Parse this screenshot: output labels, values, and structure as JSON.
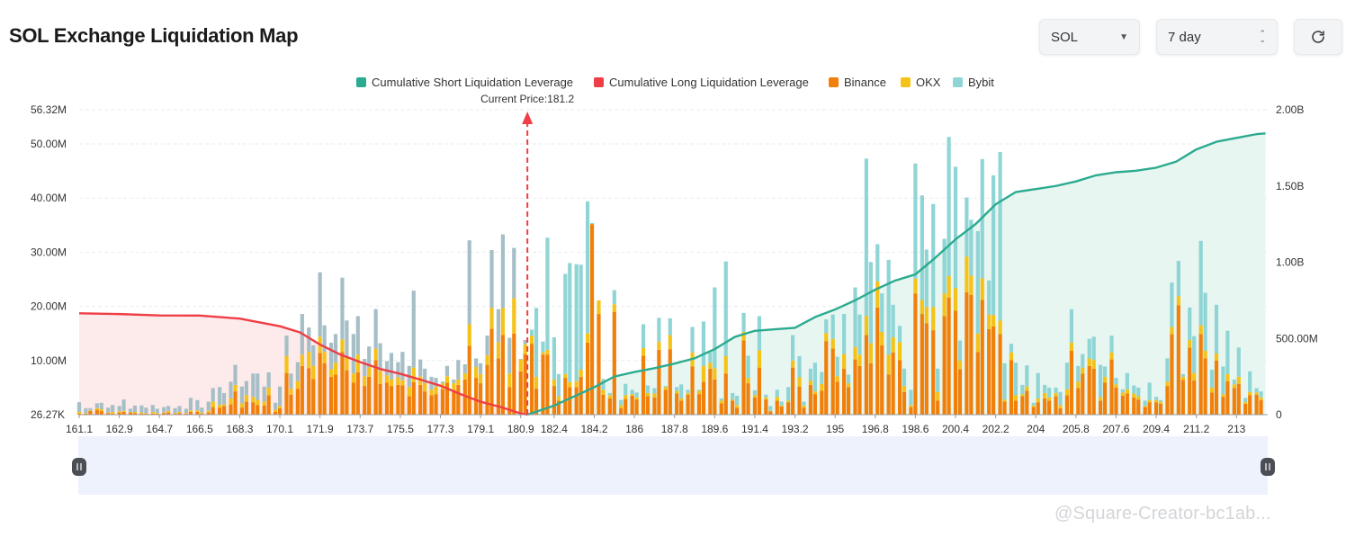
{
  "page": {
    "title": "SOL Exchange Liquidation Map",
    "symbol_select": "SOL",
    "range_select": "7 day",
    "refresh_icon": "refresh-icon",
    "watermark": "@Square-Creator-bc1ab..."
  },
  "colors": {
    "short": "#2bab8f",
    "long": "#ef3e45",
    "binance": "#f0800a",
    "okx": "#f5c218",
    "bybit": "#8fd5d5",
    "bybit_left": "#a6bfc6"
  },
  "chart_data": {
    "type": "bar",
    "title": "",
    "legend": {
      "position": "top-center",
      "items": [
        "Cumulative Short Liquidation Leverage",
        "Cumulative Long Liquidation Leverage",
        "Binance",
        "OKX",
        "Bybit"
      ]
    },
    "current_price_label": "Current Price:181.2",
    "current_price": 181.2,
    "x_range": [
      161.1,
      214.4
    ],
    "x_ticks": [
      "161.1",
      "162.9",
      "164.7",
      "166.5",
      "168.3",
      "170.1",
      "171.9",
      "173.7",
      "175.5",
      "177.3",
      "179.1",
      "180.9",
      "182.4",
      "184.2",
      "186",
      "187.8",
      "189.6",
      "191.4",
      "193.2",
      "195",
      "196.8",
      "198.6",
      "200.4",
      "202.2",
      "204",
      "205.8",
      "207.6",
      "209.4",
      "211.2",
      "213"
    ],
    "y_left": {
      "ticks": [
        {
          "label": "26.27K",
          "value": 0
        },
        {
          "label": "10.00M",
          "value": 10
        },
        {
          "label": "20.00M",
          "value": 20
        },
        {
          "label": "30.00M",
          "value": 30
        },
        {
          "label": "40.00M",
          "value": 40
        },
        {
          "label": "50.00M",
          "value": 50
        },
        {
          "label": "56.32M",
          "value": 56.32
        }
      ],
      "range": [
        0,
        56.32
      ],
      "unit": "M"
    },
    "y_right": {
      "ticks": [
        {
          "label": "0",
          "value": 0
        },
        {
          "label": "500.00M",
          "value": 0.5
        },
        {
          "label": "1.00B",
          "value": 1.0
        },
        {
          "label": "1.50B",
          "value": 1.5
        },
        {
          "label": "2.00B",
          "value": 2.0
        }
      ],
      "range": [
        0,
        2.0
      ],
      "unit": "B"
    },
    "grid": true,
    "bars": {
      "x": [
        161.1,
        161.4,
        161.6,
        161.9,
        162.1,
        162.4,
        162.6,
        162.9,
        163.1,
        163.4,
        163.6,
        163.9,
        164.1,
        164.4,
        164.6,
        164.9,
        165.1,
        165.4,
        165.6,
        165.9,
        166.1,
        166.4,
        166.6,
        166.9,
        167.1,
        167.4,
        167.6,
        167.9,
        168.1,
        168.4,
        168.6,
        168.9,
        169.1,
        169.4,
        169.6,
        169.9,
        170.1,
        170.4,
        170.6,
        170.9,
        171.1,
        171.4,
        171.6,
        171.9,
        172.1,
        172.4,
        172.6,
        172.9,
        173.1,
        173.4,
        173.6,
        173.9,
        174.1,
        174.4,
        174.6,
        174.9,
        175.1,
        175.4,
        175.6,
        175.9,
        176.1,
        176.4,
        176.6,
        176.9,
        177.1,
        177.4,
        177.6,
        177.9,
        178.1,
        178.4,
        178.6,
        178.9,
        179.1,
        179.4,
        179.6,
        179.9,
        180.1,
        180.4,
        180.6,
        180.9,
        181.1,
        181.4,
        181.6,
        181.9,
        182.1,
        182.4,
        182.6,
        182.9,
        183.1,
        183.4,
        183.6,
        183.9,
        184.1,
        184.4,
        184.6,
        184.9,
        185.1,
        185.4,
        185.6,
        185.9,
        186.1,
        186.4,
        186.6,
        186.9,
        187.1,
        187.4,
        187.6,
        187.9,
        188.1,
        188.4,
        188.6,
        188.9,
        189.1,
        189.4,
        189.6,
        189.9,
        190.1,
        190.4,
        190.6,
        190.9,
        191.1,
        191.4,
        191.6,
        191.9,
        192.1,
        192.4,
        192.6,
        192.9,
        193.1,
        193.4,
        193.6,
        193.9,
        194.1,
        194.4,
        194.6,
        194.9,
        195.1,
        195.4,
        195.6,
        195.9,
        196.1,
        196.4,
        196.6,
        196.9,
        197.1,
        197.4,
        197.6,
        197.9,
        198.1,
        198.4,
        198.6,
        198.9,
        199.1,
        199.4,
        199.6,
        199.9,
        200.1,
        200.4,
        200.6,
        200.9,
        201.1,
        201.4,
        201.6,
        201.9,
        202.1,
        202.4,
        202.6,
        202.9,
        203.1,
        203.4,
        203.6,
        203.9,
        204.1,
        204.4,
        204.6,
        204.9,
        205.1,
        205.4,
        205.6,
        205.9,
        206.1,
        206.4,
        206.6,
        206.9,
        207.1,
        207.4,
        207.6,
        207.9,
        208.1,
        208.4,
        208.6,
        208.9,
        209.1,
        209.4,
        209.6,
        209.9,
        210.1,
        210.4,
        210.6,
        210.9,
        211.1,
        211.4,
        211.6,
        211.9,
        212.1,
        212.4,
        212.6,
        212.9,
        213.1,
        213.4,
        213.6,
        213.9,
        214.1
      ],
      "totals": [
        2.3,
        1.2,
        1.2,
        2.1,
        2.2,
        1.3,
        1.8,
        1.6,
        2.8,
        1.1,
        1.7,
        1.7,
        1.3,
        1.8,
        1.1,
        1.4,
        1.6,
        1.2,
        1.6,
        1.1,
        3.1,
        2.7,
        1.3,
        2.4,
        4.9,
        5.1,
        4.0,
        6.1,
        9.2,
        5.2,
        6.2,
        7.6,
        7.6,
        5.2,
        7.8,
        2.2,
        5.2,
        14.6,
        7.6,
        9.7,
        18.6,
        16.1,
        12.8,
        26.3,
        16.5,
        13.3,
        14.9,
        25.3,
        17.4,
        14.9,
        18.2,
        10.3,
        12.6,
        19.5,
        13.2,
        9.9,
        11.4,
        9.7,
        11.6,
        9.0,
        22.9,
        10.2,
        8.5,
        7.0,
        6.8,
        6.1,
        9.0,
        6.5,
        10.1,
        9.3,
        32.2,
        10.4,
        9.5,
        14.6,
        30.4,
        19.5,
        33.3,
        14.2,
        30.8,
        10.3,
        13.8,
        15.7,
        19.7,
        13.5,
        32.7,
        14.3,
        7.5,
        26.0,
        28.0,
        27.8,
        27.7,
        39.4,
        35.4,
        21.0,
        6.6,
        4.0,
        23.0,
        2.7,
        5.7,
        4.6,
        4.1,
        16.7,
        5.4,
        4.9,
        17.9,
        5.3,
        17.8,
        5.1,
        5.6,
        4.6,
        16.2,
        4.6,
        17.2,
        11.5,
        23.5,
        3.0,
        28.3,
        4.0,
        3.5,
        18.8,
        10.9,
        4.5,
        18.2,
        3.7,
        1.6,
        4.6,
        2.4,
        5.1,
        14.7,
        10.8,
        2.4,
        8.5,
        9.6,
        7.9,
        17.6,
        18.5,
        10.7,
        18.6,
        7.4,
        23.5,
        18.5,
        47.3,
        28.2,
        31.5,
        22.4,
        28.6,
        20.3,
        16.4,
        8.5,
        4.6,
        46.4,
        40.5,
        30.5,
        38.9,
        8.5,
        32.5,
        51.3,
        45.8,
        13.7,
        40.1,
        36.0,
        33.9,
        47.2,
        24.8,
        44.2,
        48.5,
        9.5,
        13.1,
        9.6,
        5.5,
        9.1,
        2.2,
        7.7,
        5.5,
        5.0,
        5.0,
        4.2,
        9.6,
        19.5,
        9.0,
        11.2,
        14.0,
        14.4,
        9.2,
        8.9,
        14.6,
        6.8,
        4.7,
        7.7,
        5.4,
        5.0,
        2.6,
        5.9,
        3.3,
        2.7,
        10.4,
        24.4,
        28.4,
        7.5,
        19.8,
        14.5,
        32.1,
        22.5,
        8.3,
        20.3,
        8.9,
        15.5,
        6.5,
        12.4,
        3.1,
        8.0,
        4.9,
        4.3
      ],
      "binance": [
        0.2,
        0.2,
        0.7,
        0.9,
        0.7,
        0.3,
        0.2,
        0.4,
        0.5,
        0.4,
        0.3,
        0.2,
        0.2,
        0.2,
        0.2,
        0.3,
        0.4,
        0.2,
        0.3,
        0.2,
        0.5,
        0.5,
        0.2,
        0.4,
        1.4,
        1.3,
        1.6,
        1.9,
        4.3,
        1.3,
        2.4,
        2.3,
        1.8,
        1.7,
        3.6,
        0.5,
        1.2,
        7.7,
        3.7,
        4.8,
        9.0,
        8.6,
        6.6,
        11.4,
        9.5,
        7.0,
        7.4,
        11.6,
        8.2,
        5.9,
        7.8,
        5.3,
        7.0,
        10.1,
        5.7,
        5.9,
        5.3,
        5.5,
        5.4,
        3.4,
        6.0,
        5.5,
        4.3,
        3.6,
        3.8,
        4.7,
        5.9,
        4.6,
        5.5,
        6.5,
        12.7,
        6.8,
        5.8,
        9.2,
        15.9,
        10.4,
        14.7,
        5.1,
        15.0,
        8.0,
        11.2,
        13.1,
        4.8,
        11.1,
        11.1,
        5.3,
        2.6,
        6.8,
        5.1,
        5.1,
        7.0,
        13.3,
        35.2,
        18.6,
        3.7,
        3.0,
        19.0,
        1.2,
        2.9,
        3.5,
        2.8,
        10.9,
        3.4,
        3.2,
        12.0,
        4.6,
        12.1,
        3.9,
        2.6,
        3.7,
        8.9,
        3.8,
        6.1,
        8.5,
        6.5,
        2.1,
        7.6,
        2.6,
        1.3,
        13.7,
        5.8,
        3.2,
        8.7,
        2.8,
        0.6,
        2.6,
        1.5,
        2.3,
        8.7,
        5.2,
        1.3,
        5.5,
        3.8,
        4.4,
        13.6,
        12.2,
        6.1,
        8.5,
        5.1,
        10.2,
        9.0,
        14.7,
        9.5,
        19.8,
        12.8,
        7.4,
        11.5,
        10.1,
        4.2,
        1.4,
        22.4,
        18.6,
        16.9,
        15.6,
        2.6,
        18.2,
        21.6,
        19.2,
        8.4,
        22.6,
        22.1,
        11.6,
        21.2,
        15.8,
        16.3,
        14.9,
        2.4,
        10.1,
        2.6,
        3.4,
        4.4,
        1.4,
        2.3,
        3.0,
        2.6,
        3.4,
        1.2,
        3.6,
        11.8,
        4.9,
        7.6,
        9.0,
        8.5,
        2.6,
        5.9,
        10.2,
        5.0,
        3.5,
        3.9,
        3.2,
        2.8,
        1.4,
        2.3,
        2.3,
        2.0,
        5.3,
        14.9,
        20.2,
        6.4,
        12.4,
        6.3,
        14.9,
        10.4,
        4.1,
        10.0,
        3.3,
        6.2,
        4.9,
        5.7,
        2.0,
        3.6,
        3.7,
        2.7
      ],
      "okx": [
        0.3,
        0.1,
        0.1,
        0.3,
        0.3,
        0.1,
        0.3,
        0.2,
        0.2,
        0.1,
        0.2,
        0.2,
        0.1,
        0.3,
        0.1,
        0.1,
        0.3,
        0.1,
        0.2,
        0.1,
        0.3,
        0.3,
        0.2,
        0.3,
        1.0,
        0.5,
        0.3,
        1.1,
        1.2,
        0.8,
        1.2,
        1.0,
        0.9,
        0.7,
        1.4,
        0.4,
        0.4,
        3.1,
        1.1,
        1.4,
        2.1,
        3.0,
        2.4,
        3.0,
        2.1,
        1.4,
        2.2,
        2.3,
        2.5,
        1.7,
        3.3,
        1.8,
        1.8,
        2.1,
        2.4,
        1.4,
        1.2,
        1.4,
        1.0,
        1.7,
        2.7,
        1.6,
        1.5,
        1.0,
        1.4,
        1.1,
        1.2,
        1.2,
        1.0,
        1.1,
        4.0,
        2.0,
        1.7,
        1.8,
        3.8,
        3.0,
        5.0,
        2.5,
        6.5,
        2.2,
        1.8,
        1.5,
        2.2,
        0.4,
        0.9,
        1.2,
        0.8,
        0.7,
        0.9,
        1.1,
        1.3,
        1.7,
        0.0,
        2.5,
        0.9,
        0.6,
        1.4,
        0.6,
        0.7,
        0.3,
        0.4,
        1.4,
        0.6,
        0.7,
        1.5,
        0.5,
        2.6,
        0.5,
        0.4,
        0.3,
        2.6,
        0.6,
        2.9,
        1.1,
        2.1,
        0.5,
        3.2,
        0.2,
        0.5,
        1.6,
        1.0,
        0.4,
        3.2,
        0.4,
        0.1,
        0.7,
        0.2,
        0.3,
        1.3,
        1.7,
        0.4,
        0.8,
        0.5,
        1.3,
        1.5,
        1.8,
        1.0,
        2.7,
        0.7,
        2.3,
        2.1,
        3.5,
        3.7,
        4.8,
        2.5,
        3.7,
        2.8,
        3.3,
        1.1,
        0.4,
        2.7,
        2.6,
        3.0,
        4.3,
        1.6,
        4.2,
        4.0,
        4.2,
        1.6,
        6.6,
        3.6,
        3.4,
        4.0,
        2.7,
        2.1,
        2.5,
        0.4,
        1.4,
        1.0,
        0.4,
        0.8,
        0.3,
        0.7,
        1.0,
        0.6,
        0.6,
        0.6,
        1.1,
        1.5,
        1.2,
        1.1,
        1.4,
        1.6,
        0.7,
        1.1,
        1.3,
        0.6,
        0.6,
        0.8,
        0.7,
        0.6,
        0.2,
        0.4,
        0.4,
        0.4,
        0.8,
        1.3,
        1.7,
        0.6,
        1.4,
        1.4,
        1.6,
        1.4,
        0.9,
        1.3,
        0.5,
        1.3,
        0.7,
        1.3,
        0.3,
        0.6,
        0.4,
        0.5
      ]
    },
    "series": [
      {
        "name": "Cumulative Long Liquidation Leverage",
        "x": [
          161.1,
          162.9,
          164.7,
          166.5,
          168.3,
          169.2,
          170.1,
          171.0,
          171.9,
          172.8,
          173.7,
          174.6,
          175.5,
          176.4,
          177.3,
          178.2,
          179.1,
          180.0,
          180.9,
          181.2
        ],
        "values": [
          0.665,
          0.66,
          0.651,
          0.65,
          0.63,
          0.605,
          0.58,
          0.54,
          0.46,
          0.395,
          0.345,
          0.3,
          0.268,
          0.23,
          0.19,
          0.135,
          0.085,
          0.05,
          0.008,
          0.0
        ]
      },
      {
        "name": "Cumulative Short Liquidation Leverage",
        "x": [
          181.2,
          181.5,
          182.4,
          183.3,
          184.2,
          185.1,
          186.0,
          186.9,
          187.8,
          188.7,
          189.6,
          190.5,
          191.4,
          192.3,
          193.2,
          194.1,
          195.0,
          195.9,
          196.8,
          197.7,
          198.6,
          199.5,
          200.4,
          201.3,
          202.2,
          203.1,
          204.0,
          204.9,
          205.8,
          206.7,
          207.6,
          208.5,
          209.4,
          210.3,
          211.2,
          212.1,
          213.0,
          213.9,
          214.3
        ],
        "values": [
          0.0,
          0.015,
          0.06,
          0.12,
          0.18,
          0.25,
          0.28,
          0.305,
          0.335,
          0.37,
          0.43,
          0.51,
          0.55,
          0.56,
          0.57,
          0.64,
          0.69,
          0.75,
          0.82,
          0.88,
          0.92,
          1.03,
          1.15,
          1.25,
          1.38,
          1.46,
          1.48,
          1.5,
          1.53,
          1.57,
          1.59,
          1.6,
          1.62,
          1.66,
          1.74,
          1.79,
          1.815,
          1.84,
          1.845
        ]
      }
    ]
  }
}
